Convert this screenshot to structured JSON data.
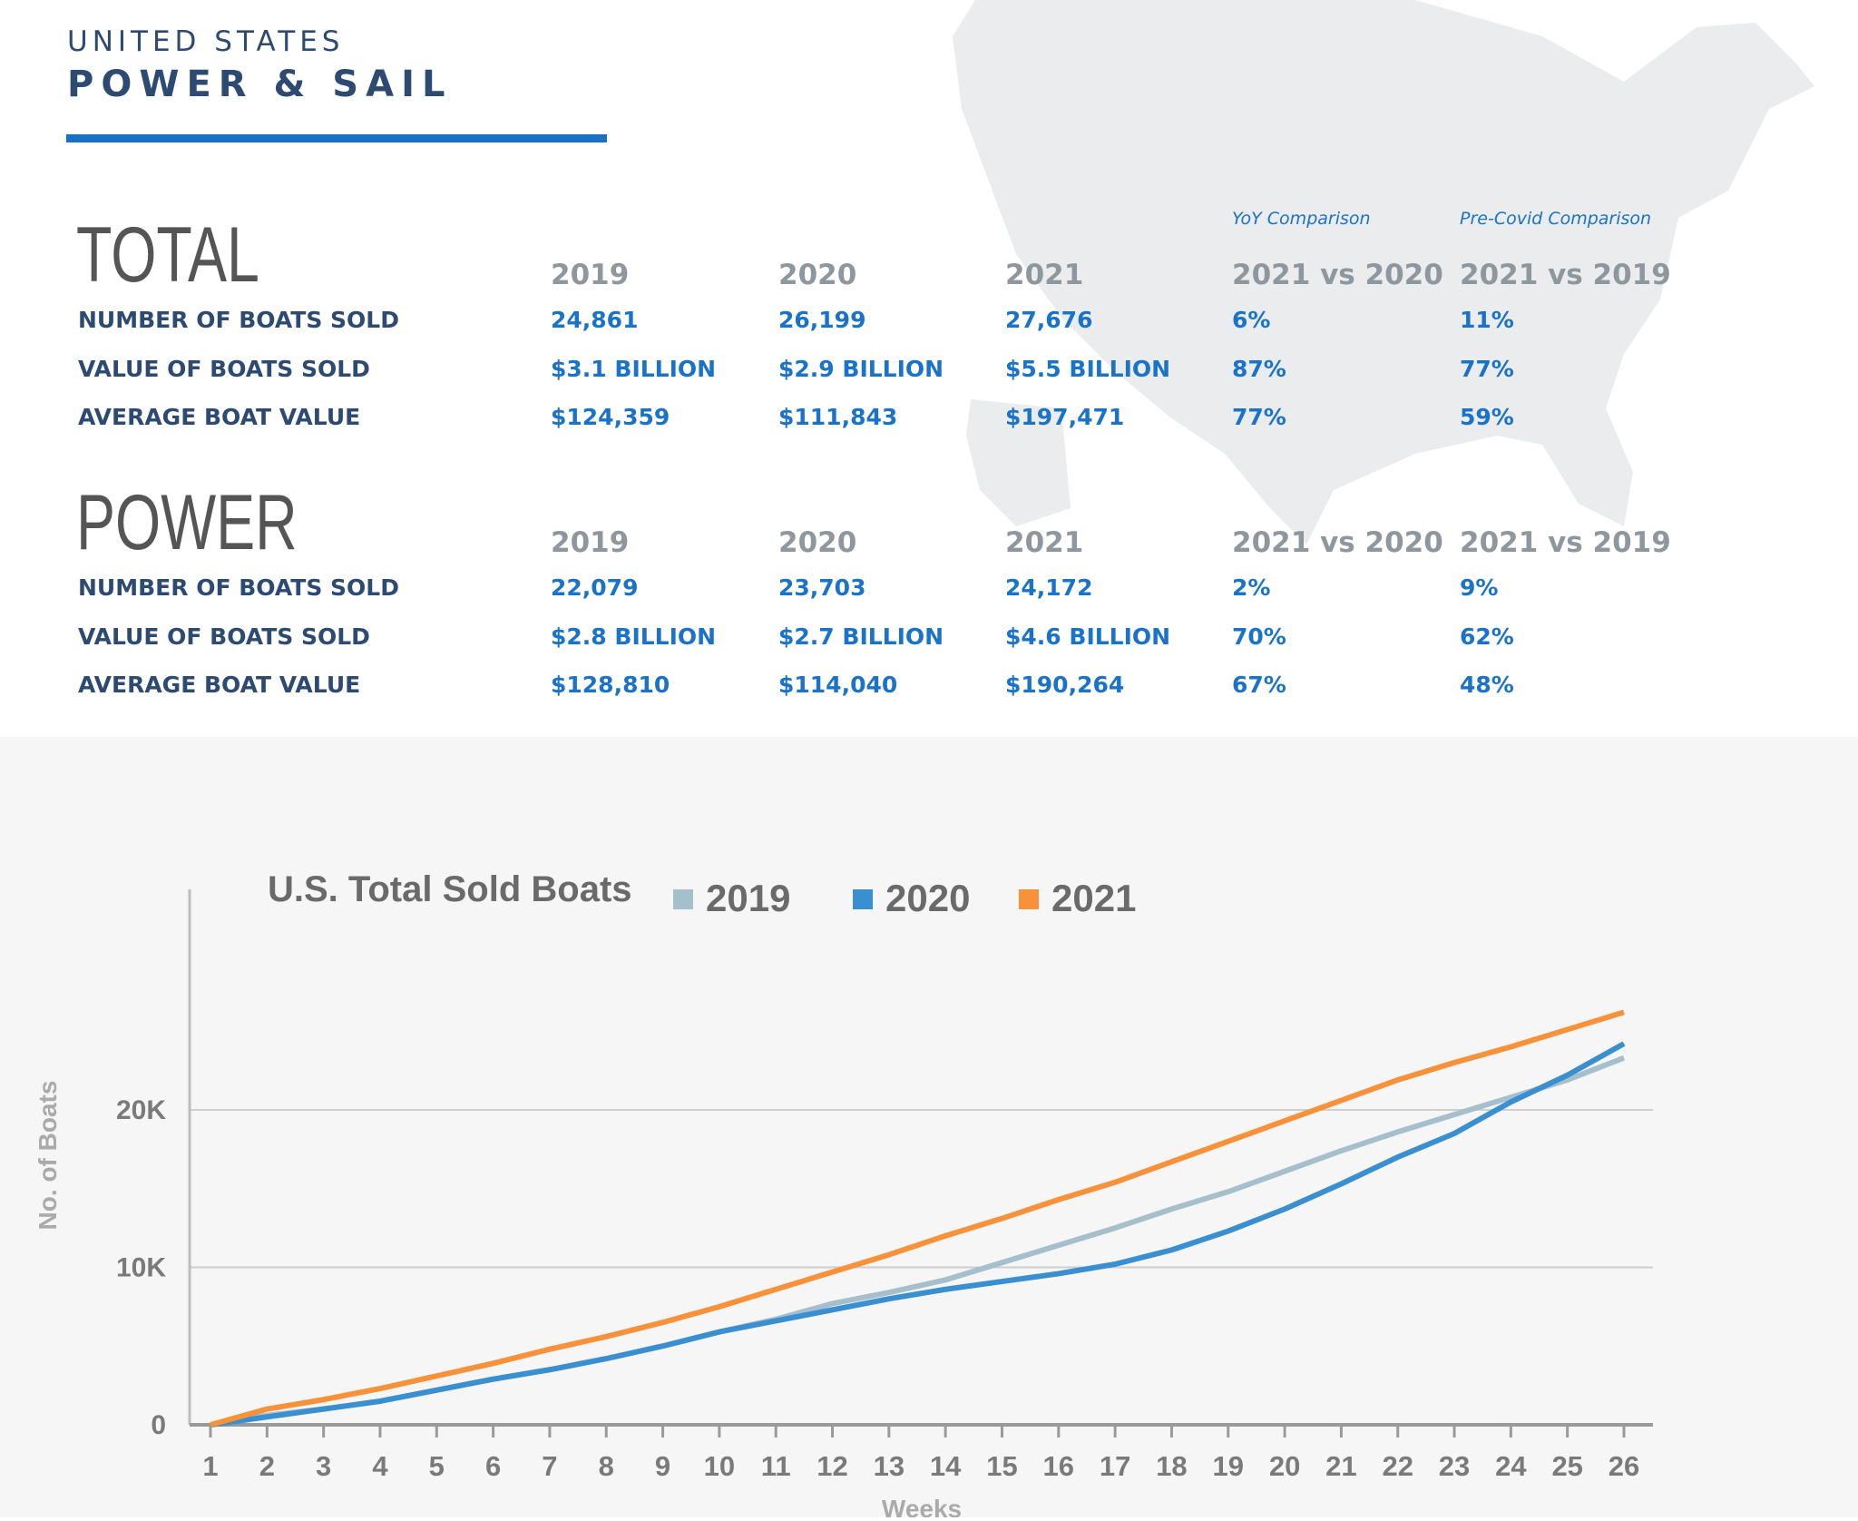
{
  "header": {
    "subtitle": "UNITED STATES",
    "title": "POWER & SAIL"
  },
  "comparison_notes": [
    "YoY Comparison",
    "Pre-Covid Comparison"
  ],
  "tables": [
    {
      "title": "TOTAL",
      "columns": [
        "2019",
        "2020",
        "2021",
        "2021 vs 2020",
        "2021 vs 2019"
      ],
      "rows": [
        {
          "label": "NUMBER OF BOATS SOLD",
          "cells": [
            "24,861",
            "26,199",
            "27,676",
            "6%",
            "11%"
          ]
        },
        {
          "label": "VALUE OF BOATS SOLD",
          "cells": [
            "$3.1 BILLION",
            "$2.9 BILLION",
            "$5.5 BILLION",
            "87%",
            "77%"
          ]
        },
        {
          "label": "AVERAGE BOAT VALUE",
          "cells": [
            "$124,359",
            "$111,843",
            "$197,471",
            "77%",
            "59%"
          ]
        }
      ]
    },
    {
      "title": "POWER",
      "columns": [
        "2019",
        "2020",
        "2021",
        "2021 vs 2020",
        "2021 vs 2019"
      ],
      "rows": [
        {
          "label": "NUMBER OF BOATS SOLD",
          "cells": [
            "22,079",
            "23,703",
            "24,172",
            "2%",
            "9%"
          ]
        },
        {
          "label": "VALUE OF BOATS SOLD",
          "cells": [
            "$2.8 BILLION",
            "$2.7 BILLION",
            "$4.6 BILLION",
            "70%",
            "62%"
          ]
        },
        {
          "label": "AVERAGE BOAT VALUE",
          "cells": [
            "$128,810",
            "$114,040",
            "$190,264",
            "67%",
            "48%"
          ]
        }
      ]
    }
  ],
  "chart_data": {
    "type": "line",
    "title": "U.S. Total Sold Boats",
    "x_label": "Weeks",
    "y_label": "No. of Boats",
    "categories": [
      "1",
      "2",
      "3",
      "4",
      "5",
      "6",
      "7",
      "8",
      "9",
      "10",
      "11",
      "12",
      "13",
      "14",
      "15",
      "16",
      "17",
      "18",
      "19",
      "20",
      "21",
      "22",
      "23",
      "24",
      "25",
      "26"
    ],
    "ylim": [
      0,
      34000
    ],
    "yticks": [
      0,
      {
        "value": 10000,
        "label": "10K"
      },
      {
        "value": 20000,
        "label": "20K"
      }
    ],
    "grid": true,
    "series": [
      {
        "name": "2019",
        "color": "#a5bfcc",
        "values": [
          0,
          600,
          1000,
          1500,
          2200,
          2900,
          3500,
          4200,
          5000,
          5900,
          6700,
          7700,
          8400,
          9200,
          10300,
          11400,
          12500,
          13700,
          14800,
          16100,
          17400,
          18600,
          19700,
          20800,
          21900,
          23300
        ]
      },
      {
        "name": "2020",
        "color": "#3a8fd0",
        "values": [
          0,
          500,
          1000,
          1500,
          2200,
          2900,
          3500,
          4200,
          5000,
          5900,
          6600,
          7300,
          8000,
          8600,
          9100,
          9600,
          10200,
          11100,
          12300,
          13700,
          15300,
          17000,
          18500,
          20500,
          22200,
          24200
        ]
      },
      {
        "name": "2021",
        "color": "#f7923a",
        "values": [
          0,
          1000,
          1600,
          2300,
          3100,
          3900,
          4800,
          5600,
          6500,
          7500,
          8600,
          9700,
          10800,
          12000,
          13100,
          14300,
          15400,
          16700,
          18000,
          19300,
          20600,
          21900,
          23000,
          24000,
          25100,
          26200
        ]
      }
    ]
  }
}
